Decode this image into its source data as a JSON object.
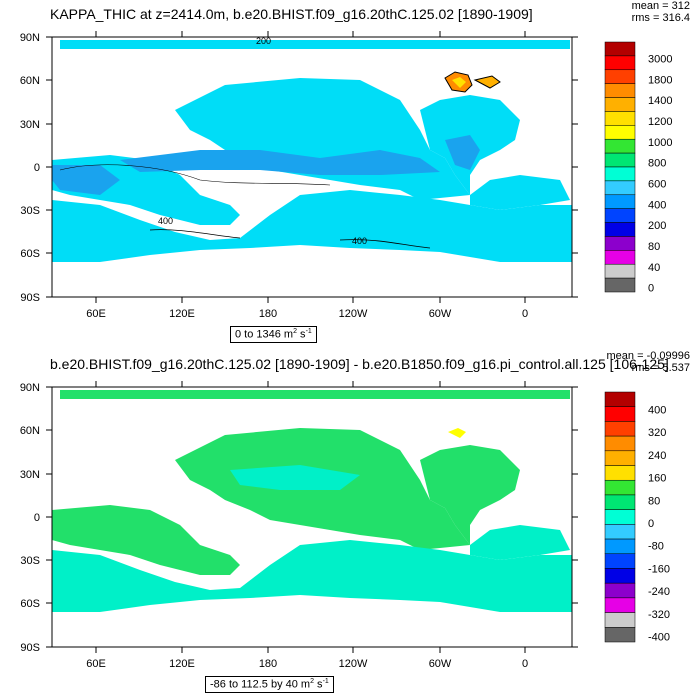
{
  "panels": [
    {
      "title": "KAPPA_THIC at z=2414.0m, b.e20.BHIST.f09_g16.20thC.125.02 [1890-1909]",
      "stats": {
        "mean": "mean = 312",
        "rms": "rms = 316.4"
      },
      "range_text": "0 to 1346 m",
      "range_units_sup": "2",
      "range_units_tail": " s",
      "range_units_sup2": "-1",
      "colorbar": {
        "labels": [
          "3000",
          "1800",
          "1400",
          "1200",
          "1000",
          "800",
          "600",
          "400",
          "200",
          "80",
          "40",
          "0"
        ],
        "colors": [
          "#b30000",
          "#ff0000",
          "#ff4000",
          "#ff8c00",
          "#ffb000",
          "#ffe000",
          "#ffff00",
          "#33e633",
          "#00e673",
          "#00ffd5",
          "#33ccff",
          "#0099ff",
          "#0044ff",
          "#0000e6",
          "#8c00cc",
          "#e600e6",
          "#cccccc",
          "#666666"
        ]
      },
      "contour_labels": [
        "400",
        "400",
        "200"
      ],
      "ocean_color": "#00ddf7",
      "ocean_deep_color": "#1aa3ee"
    },
    {
      "title": "b.e20.BHIST.f09_g16.20thC.125.02 [1890-1909] - b.e20.B1850.f09_g16.pi_control.all.125 [106-125]",
      "stats": {
        "mean": "mean = -0.09996",
        "rms": "rms = 5.537"
      },
      "range_text": "-86 to 112.5 by 40 m",
      "range_units_sup": "2",
      "range_units_tail": " s",
      "range_units_sup2": "-1",
      "colorbar": {
        "labels": [
          "400",
          "320",
          "240",
          "160",
          "80",
          "0",
          "-80",
          "-160",
          "-240",
          "-320",
          "-400"
        ],
        "colors": [
          "#b30000",
          "#ff0000",
          "#ff4000",
          "#ff8c00",
          "#ffb000",
          "#ffe000",
          "#33e633",
          "#00e673",
          "#00ffd5",
          "#33ccff",
          "#0099ff",
          "#0044ff",
          "#0000e6",
          "#8c00cc",
          "#e600e6",
          "#cccccc",
          "#666666"
        ]
      },
      "ocean_color": "#22e06a",
      "ocean_alt_color": "#00f0c8"
    }
  ],
  "axes": {
    "lat_labels": [
      "90N",
      "60N",
      "30N",
      "0",
      "30S",
      "60S",
      "90S"
    ],
    "lon_labels": [
      "60E",
      "120E",
      "180",
      "120W",
      "60W",
      "0"
    ]
  }
}
